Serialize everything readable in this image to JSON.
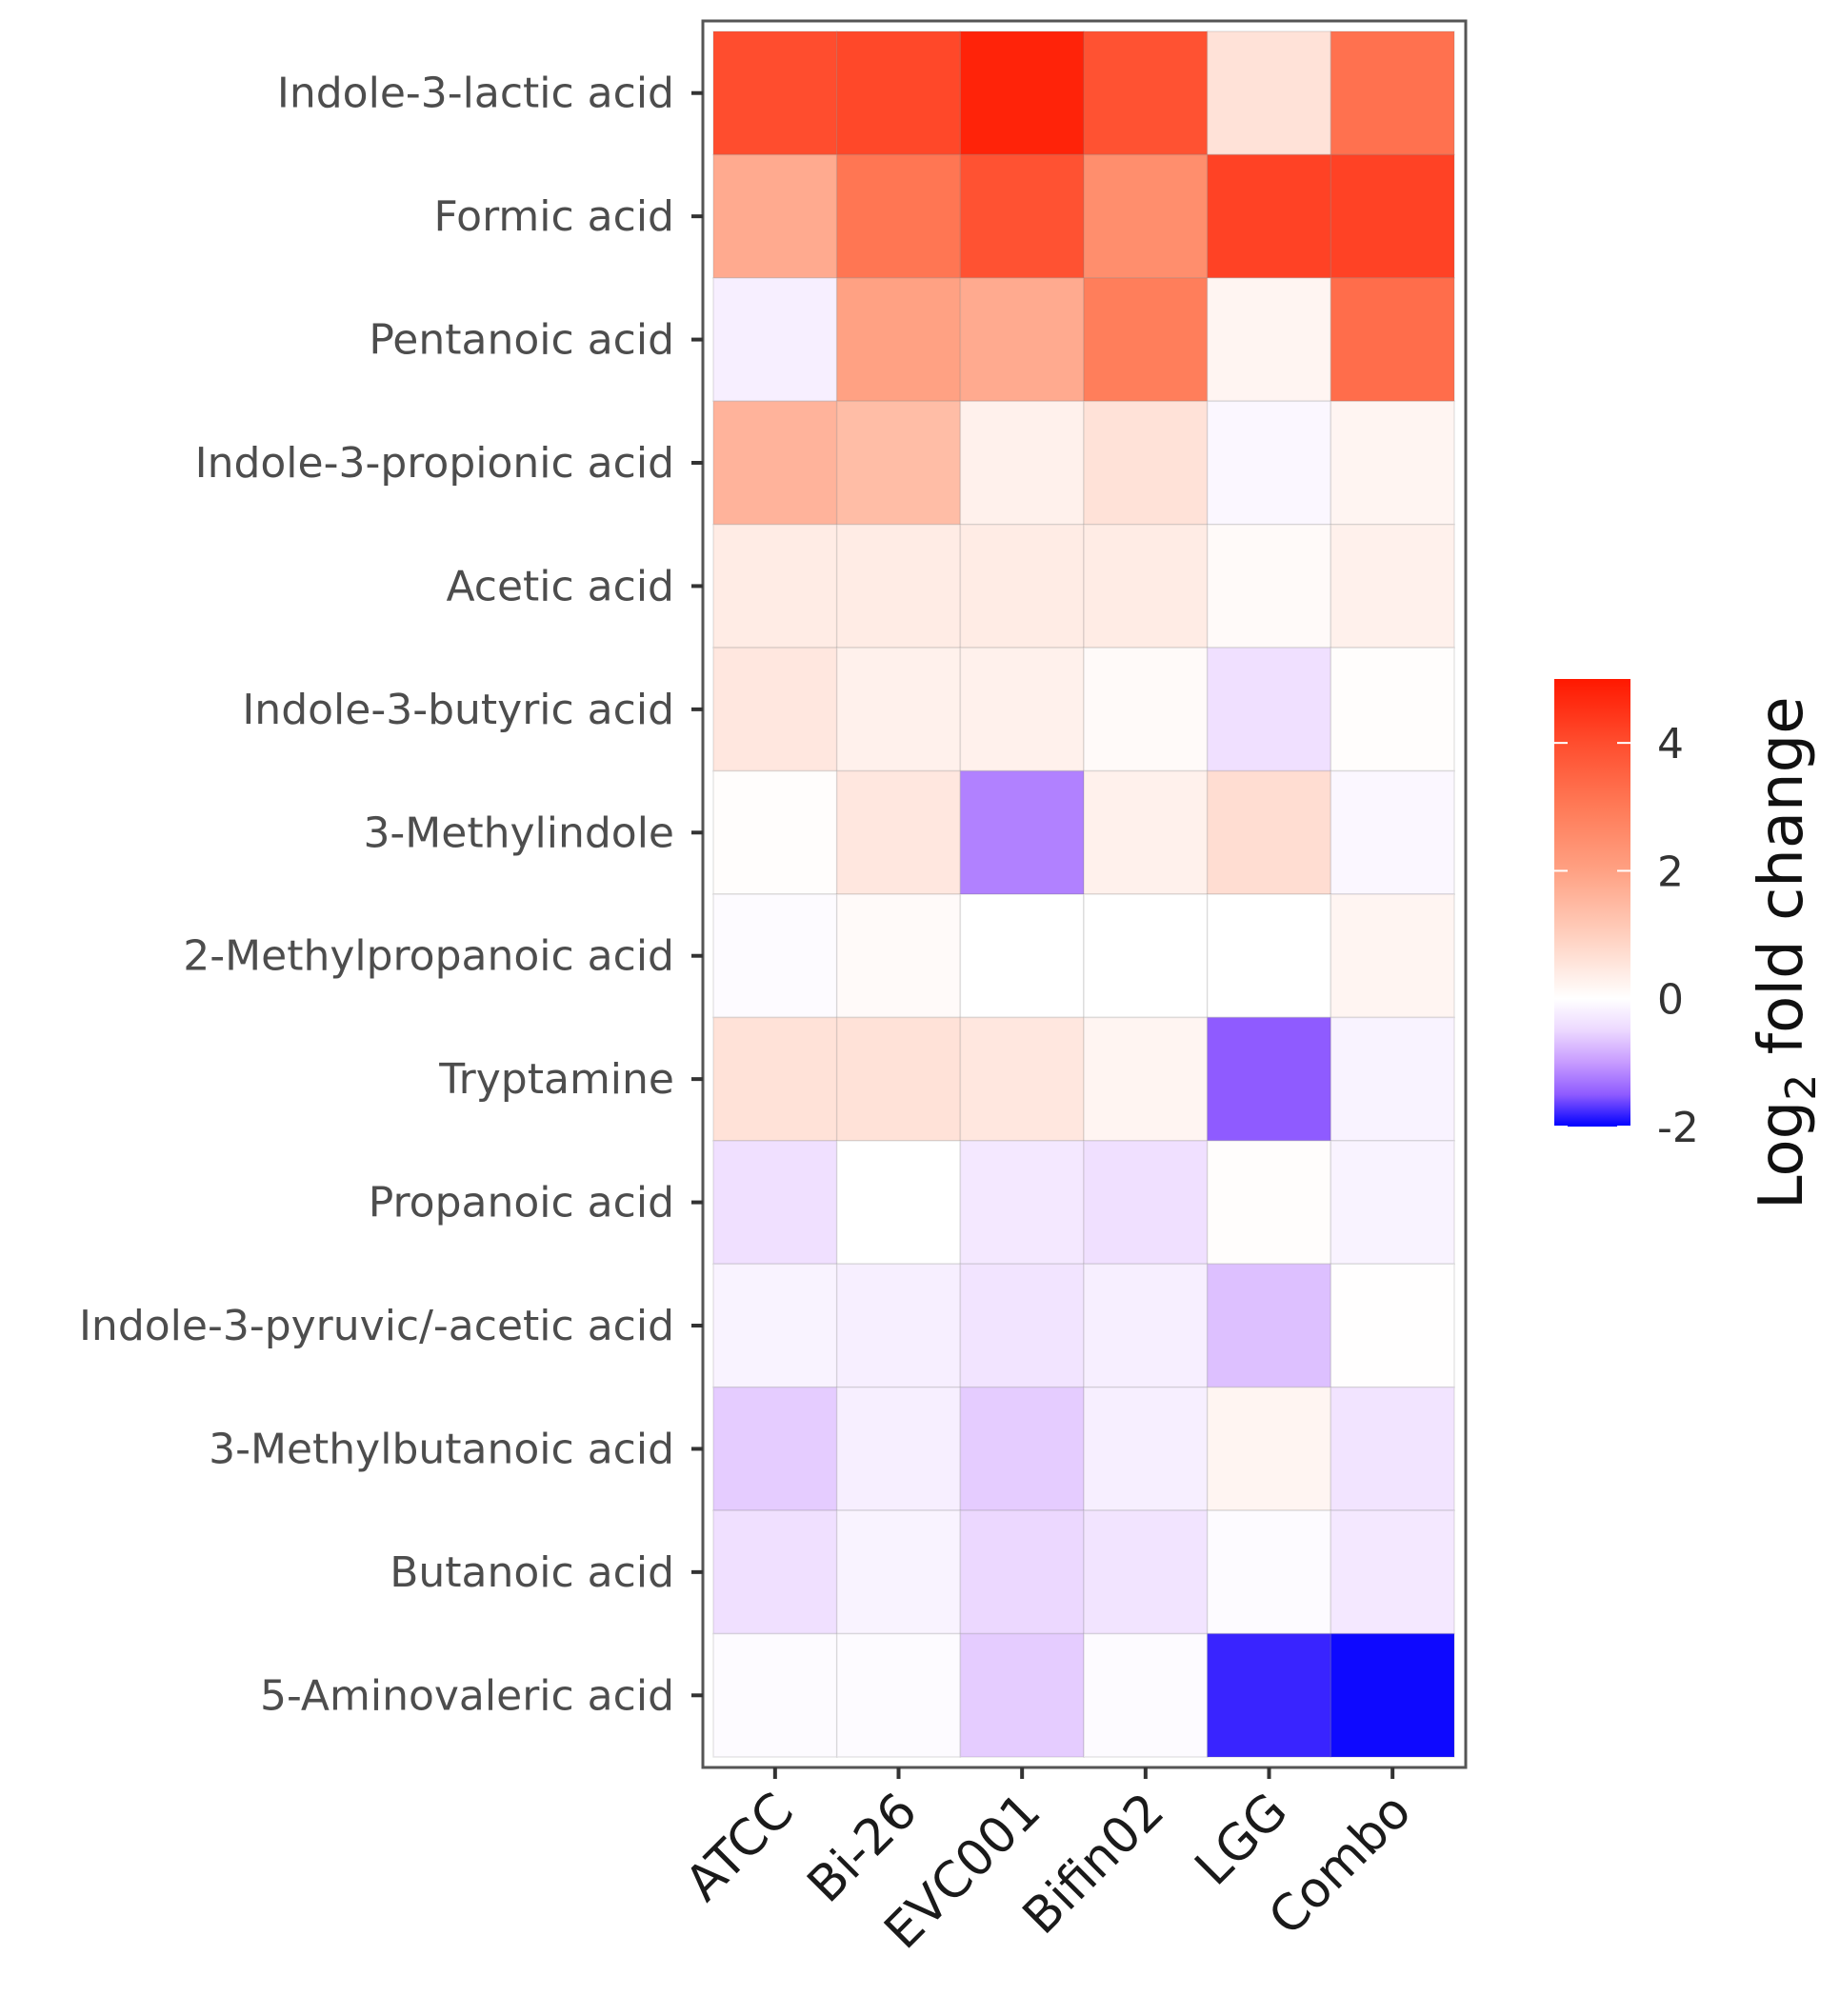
{
  "chart_data": {
    "type": "heatmap",
    "title": "",
    "xlabel": "",
    "ylabel": "",
    "columns": [
      "ATCC",
      "Bi-26",
      "EVC001",
      "Bifin02",
      "LGG",
      "Combo"
    ],
    "rows": [
      "Indole-3-lactic acid",
      "Formic acid",
      "Pentanoic acid",
      "Indole-3-propionic acid",
      "Acetic acid",
      "Indole-3-butyric acid",
      "3-Methylindole",
      "2-Methylpropanoic acid",
      "Tryptamine",
      "Propanoic acid",
      "Indole-3-pyruvic/-acetic acid",
      "3-Methylbutanoic acid",
      "Butanoic acid",
      "5-Aminovaleric acid"
    ],
    "values": [
      [
        4.0,
        4.1,
        4.8,
        3.9,
        0.6,
        3.2
      ],
      [
        1.8,
        3.1,
        3.9,
        2.5,
        4.2,
        4.2
      ],
      [
        -0.2,
        2.0,
        1.8,
        2.9,
        0.2,
        3.3
      ],
      [
        1.6,
        1.4,
        0.3,
        0.6,
        -0.1,
        0.2
      ],
      [
        0.4,
        0.4,
        0.4,
        0.4,
        0.1,
        0.3
      ],
      [
        0.5,
        0.3,
        0.3,
        0.1,
        -0.4,
        0.05
      ],
      [
        0.05,
        0.5,
        -1.2,
        0.3,
        0.7,
        -0.1
      ],
      [
        -0.05,
        0.1,
        0.0,
        0.0,
        0.0,
        0.2
      ],
      [
        0.6,
        0.6,
        0.5,
        0.2,
        -1.5,
        -0.15
      ],
      [
        -0.4,
        0.0,
        -0.3,
        -0.4,
        0.05,
        -0.15
      ],
      [
        -0.15,
        -0.2,
        -0.35,
        -0.2,
        -0.7,
        0.02
      ],
      [
        -0.6,
        -0.2,
        -0.6,
        -0.2,
        0.2,
        -0.35
      ],
      [
        -0.4,
        -0.15,
        -0.5,
        -0.35,
        -0.05,
        -0.3
      ],
      [
        -0.05,
        -0.05,
        -0.6,
        -0.05,
        -1.8,
        -1.95
      ]
    ],
    "colorbar": {
      "title": "Log2 fold change",
      "title_main": "Log",
      "title_sub": "2",
      "title_rest": " fold change",
      "range": [
        -2,
        5
      ],
      "ticks": [
        4,
        2,
        0,
        -2
      ],
      "tick_labels": [
        "4",
        "2",
        "0",
        "-2"
      ],
      "low_color": "#0000FF",
      "mid_color": "#FFFFFF",
      "high_color": "#FF0000",
      "placement": "right"
    }
  }
}
